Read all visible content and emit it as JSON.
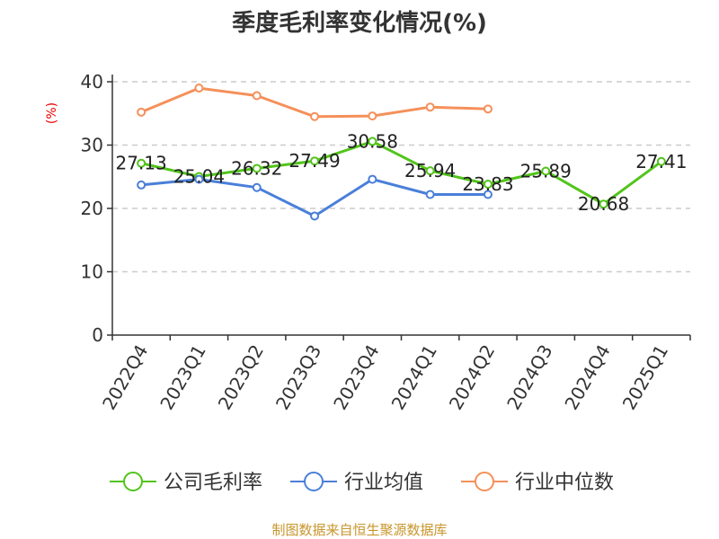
{
  "chart_data": {
    "type": "line",
    "title": "季度毛利率变化情况(%)",
    "ylabel": "(%)",
    "ylim": [
      0,
      40
    ],
    "yticks": [
      0,
      10,
      20,
      30,
      40
    ],
    "grid": true,
    "legend_position": "bottom",
    "categories": [
      "2022Q4",
      "2023Q1",
      "2023Q2",
      "2023Q3",
      "2023Q4",
      "2024Q1",
      "2024Q2",
      "2024Q3",
      "2024Q4",
      "2025Q1"
    ],
    "series": [
      {
        "name": "公司毛利率",
        "color": "#52c41a",
        "values": [
          27.13,
          25.04,
          26.32,
          27.49,
          30.58,
          25.94,
          23.83,
          25.89,
          20.68,
          27.41
        ],
        "show_labels": true
      },
      {
        "name": "行业均值",
        "color": "#4a7fd9",
        "values": [
          23.7,
          24.6,
          23.3,
          18.8,
          24.6,
          22.2,
          22.2,
          null,
          null,
          null
        ],
        "show_labels": false
      },
      {
        "name": "行业中位数",
        "color": "#f5905a",
        "values": [
          35.2,
          39.0,
          37.8,
          34.5,
          34.6,
          36.0,
          35.7,
          null,
          null,
          null
        ],
        "show_labels": false
      }
    ]
  },
  "source_text": "制图数据来自恒生聚源数据库"
}
